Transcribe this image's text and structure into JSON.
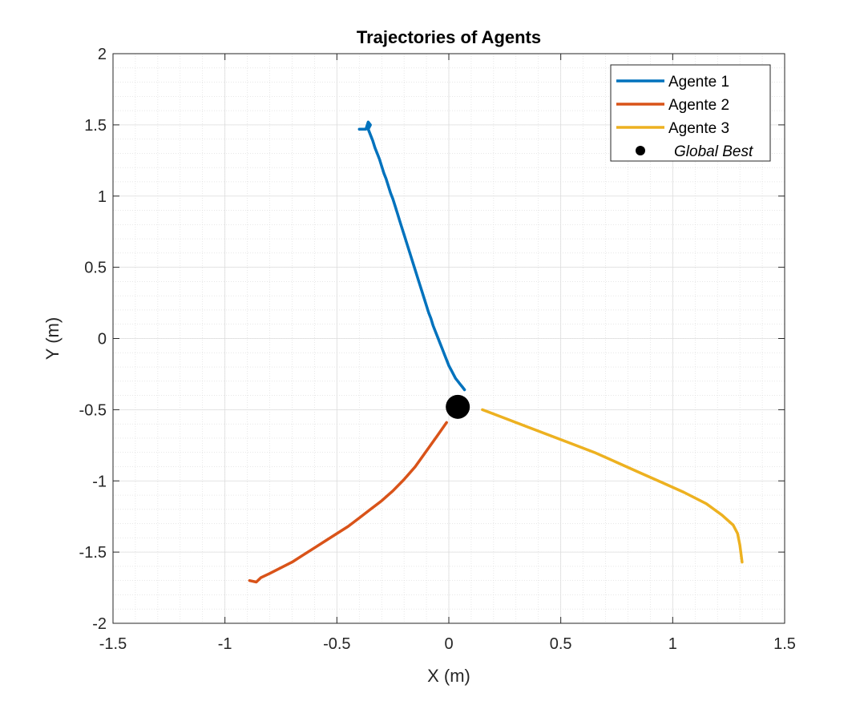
{
  "chart_data": {
    "type": "line",
    "title": "Trajectories of Agents",
    "xlabel": "X (m)",
    "ylabel": "Y (m)",
    "xlim": [
      -1.5,
      1.5
    ],
    "ylim": [
      -2,
      2
    ],
    "xticks": [
      -1.5,
      -1,
      -0.5,
      0,
      0.5,
      1,
      1.5
    ],
    "yticks": [
      -2,
      -1.5,
      -1,
      -0.5,
      0,
      0.5,
      1,
      1.5,
      2
    ],
    "xtick_labels": [
      "-1.5",
      "-1",
      "-0.5",
      "0",
      "0.5",
      "1",
      "1.5"
    ],
    "ytick_labels": [
      "-2",
      "-1.5",
      "-1",
      "-0.5",
      "0",
      "0.5",
      "1",
      "1.5",
      "2"
    ],
    "grid": true,
    "minor_grid": true,
    "legend_position": "top-right",
    "series": [
      {
        "name": "Agente 1",
        "color": "#0072BD",
        "x": [
          -0.4,
          -0.37,
          -0.36,
          -0.35,
          -0.36,
          -0.35,
          -0.34,
          -0.33,
          -0.32,
          -0.31,
          -0.3,
          -0.29,
          -0.28,
          -0.27,
          -0.26,
          -0.25,
          -0.24,
          -0.23,
          -0.22,
          -0.21,
          -0.2,
          -0.19,
          -0.18,
          -0.17,
          -0.16,
          -0.15,
          -0.14,
          -0.13,
          -0.12,
          -0.11,
          -0.1,
          -0.09,
          -0.08,
          -0.07,
          -0.06,
          -0.05,
          -0.04,
          -0.03,
          -0.02,
          -0.01,
          0.0,
          0.01,
          0.02,
          0.03,
          0.04,
          0.05,
          0.06,
          0.07
        ],
        "y": [
          1.47,
          1.47,
          1.52,
          1.5,
          1.47,
          1.43,
          1.39,
          1.34,
          1.3,
          1.26,
          1.21,
          1.16,
          1.12,
          1.07,
          1.02,
          0.98,
          0.93,
          0.88,
          0.83,
          0.78,
          0.73,
          0.68,
          0.63,
          0.58,
          0.53,
          0.48,
          0.43,
          0.38,
          0.33,
          0.28,
          0.23,
          0.18,
          0.14,
          0.09,
          0.05,
          0.01,
          -0.03,
          -0.07,
          -0.11,
          -0.15,
          -0.19,
          -0.22,
          -0.25,
          -0.28,
          -0.3,
          -0.32,
          -0.34,
          -0.36
        ]
      },
      {
        "name": "Agente 2",
        "color": "#D95319",
        "x": [
          -0.89,
          -0.86,
          -0.84,
          -0.8,
          -0.75,
          -0.7,
          -0.65,
          -0.6,
          -0.55,
          -0.5,
          -0.45,
          -0.4,
          -0.35,
          -0.3,
          -0.25,
          -0.2,
          -0.15,
          -0.1,
          -0.05,
          -0.01
        ],
        "y": [
          -1.7,
          -1.71,
          -1.68,
          -1.65,
          -1.61,
          -1.57,
          -1.52,
          -1.47,
          -1.42,
          -1.37,
          -1.32,
          -1.26,
          -1.2,
          -1.14,
          -1.07,
          -0.99,
          -0.9,
          -0.79,
          -0.68,
          -0.59
        ]
      },
      {
        "name": "Agente 3",
        "color": "#EDB120",
        "x": [
          0.15,
          0.25,
          0.35,
          0.45,
          0.55,
          0.65,
          0.75,
          0.85,
          0.95,
          1.05,
          1.15,
          1.22,
          1.27,
          1.29,
          1.3,
          1.31
        ],
        "y": [
          -0.5,
          -0.56,
          -0.62,
          -0.68,
          -0.74,
          -0.8,
          -0.87,
          -0.94,
          -1.01,
          -1.08,
          -1.16,
          -1.24,
          -1.31,
          -1.37,
          -1.45,
          -1.57
        ]
      }
    ],
    "markers": [
      {
        "name": "Global Best",
        "x": 0.04,
        "y": -0.48,
        "color": "#000000"
      }
    ]
  }
}
